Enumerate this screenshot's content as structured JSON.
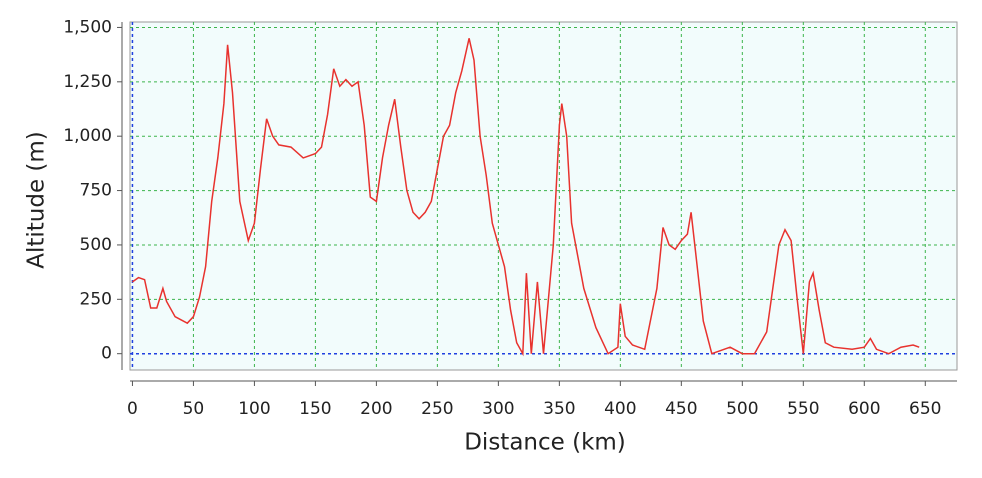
{
  "chart_data": {
    "type": "line",
    "x_label": "Distance (km)",
    "y_label": "Altitude (m)",
    "x": [
      0,
      5,
      10,
      15,
      20,
      25,
      28,
      35,
      45,
      50,
      55,
      60,
      65,
      70,
      75,
      78,
      82,
      88,
      95,
      100,
      105,
      110,
      115,
      120,
      130,
      140,
      150,
      155,
      160,
      165,
      170,
      175,
      180,
      185,
      190,
      195,
      200,
      205,
      210,
      215,
      220,
      225,
      230,
      235,
      240,
      245,
      250,
      255,
      260,
      265,
      270,
      276,
      280,
      285,
      290,
      295,
      300,
      305,
      310,
      315,
      320,
      323,
      327,
      332,
      337,
      345,
      350,
      352,
      356,
      360,
      370,
      380,
      390,
      398,
      400,
      404,
      410,
      420,
      430,
      435,
      440,
      445,
      450,
      455,
      458,
      462,
      468,
      475,
      490,
      500,
      510,
      520,
      525,
      530,
      535,
      540,
      545,
      550,
      555,
      558,
      563,
      568,
      575,
      590,
      600,
      605,
      610,
      620,
      630,
      640,
      645
    ],
    "series": [
      {
        "color": "#e8322e",
        "values": [
          330,
          350,
          340,
          210,
          210,
          300,
          240,
          170,
          140,
          170,
          260,
          400,
          700,
          900,
          1150,
          1420,
          1200,
          700,
          520,
          600,
          850,
          1080,
          1000,
          960,
          950,
          900,
          920,
          950,
          1100,
          1310,
          1230,
          1260,
          1230,
          1250,
          1050,
          720,
          700,
          900,
          1050,
          1170,
          950,
          750,
          650,
          620,
          650,
          700,
          850,
          1000,
          1050,
          1200,
          1300,
          1450,
          1350,
          1000,
          820,
          600,
          500,
          400,
          200,
          50,
          0,
          370,
          0,
          330,
          0,
          500,
          1050,
          1150,
          1000,
          600,
          300,
          120,
          0,
          30,
          230,
          80,
          40,
          20,
          300,
          580,
          500,
          480,
          520,
          550,
          650,
          450,
          150,
          0,
          30,
          0,
          0,
          100,
          300,
          500,
          570,
          520,
          250,
          0,
          330,
          370,
          200,
          50,
          30,
          20,
          30,
          70,
          20,
          0,
          30,
          40,
          30
        ]
      }
    ],
    "xlim": [
      -2,
      676
    ],
    "ylim": [
      -75,
      1525
    ],
    "xticks": [
      0,
      50,
      100,
      150,
      200,
      250,
      300,
      350,
      400,
      450,
      500,
      550,
      600,
      650
    ],
    "yticks": [
      0,
      250,
      500,
      750,
      {
        "value": 1000,
        "label": "1,000"
      },
      {
        "value": 1250,
        "label": "1,250"
      },
      {
        "value": 1500,
        "label": "1,500"
      }
    ],
    "grid": true
  }
}
